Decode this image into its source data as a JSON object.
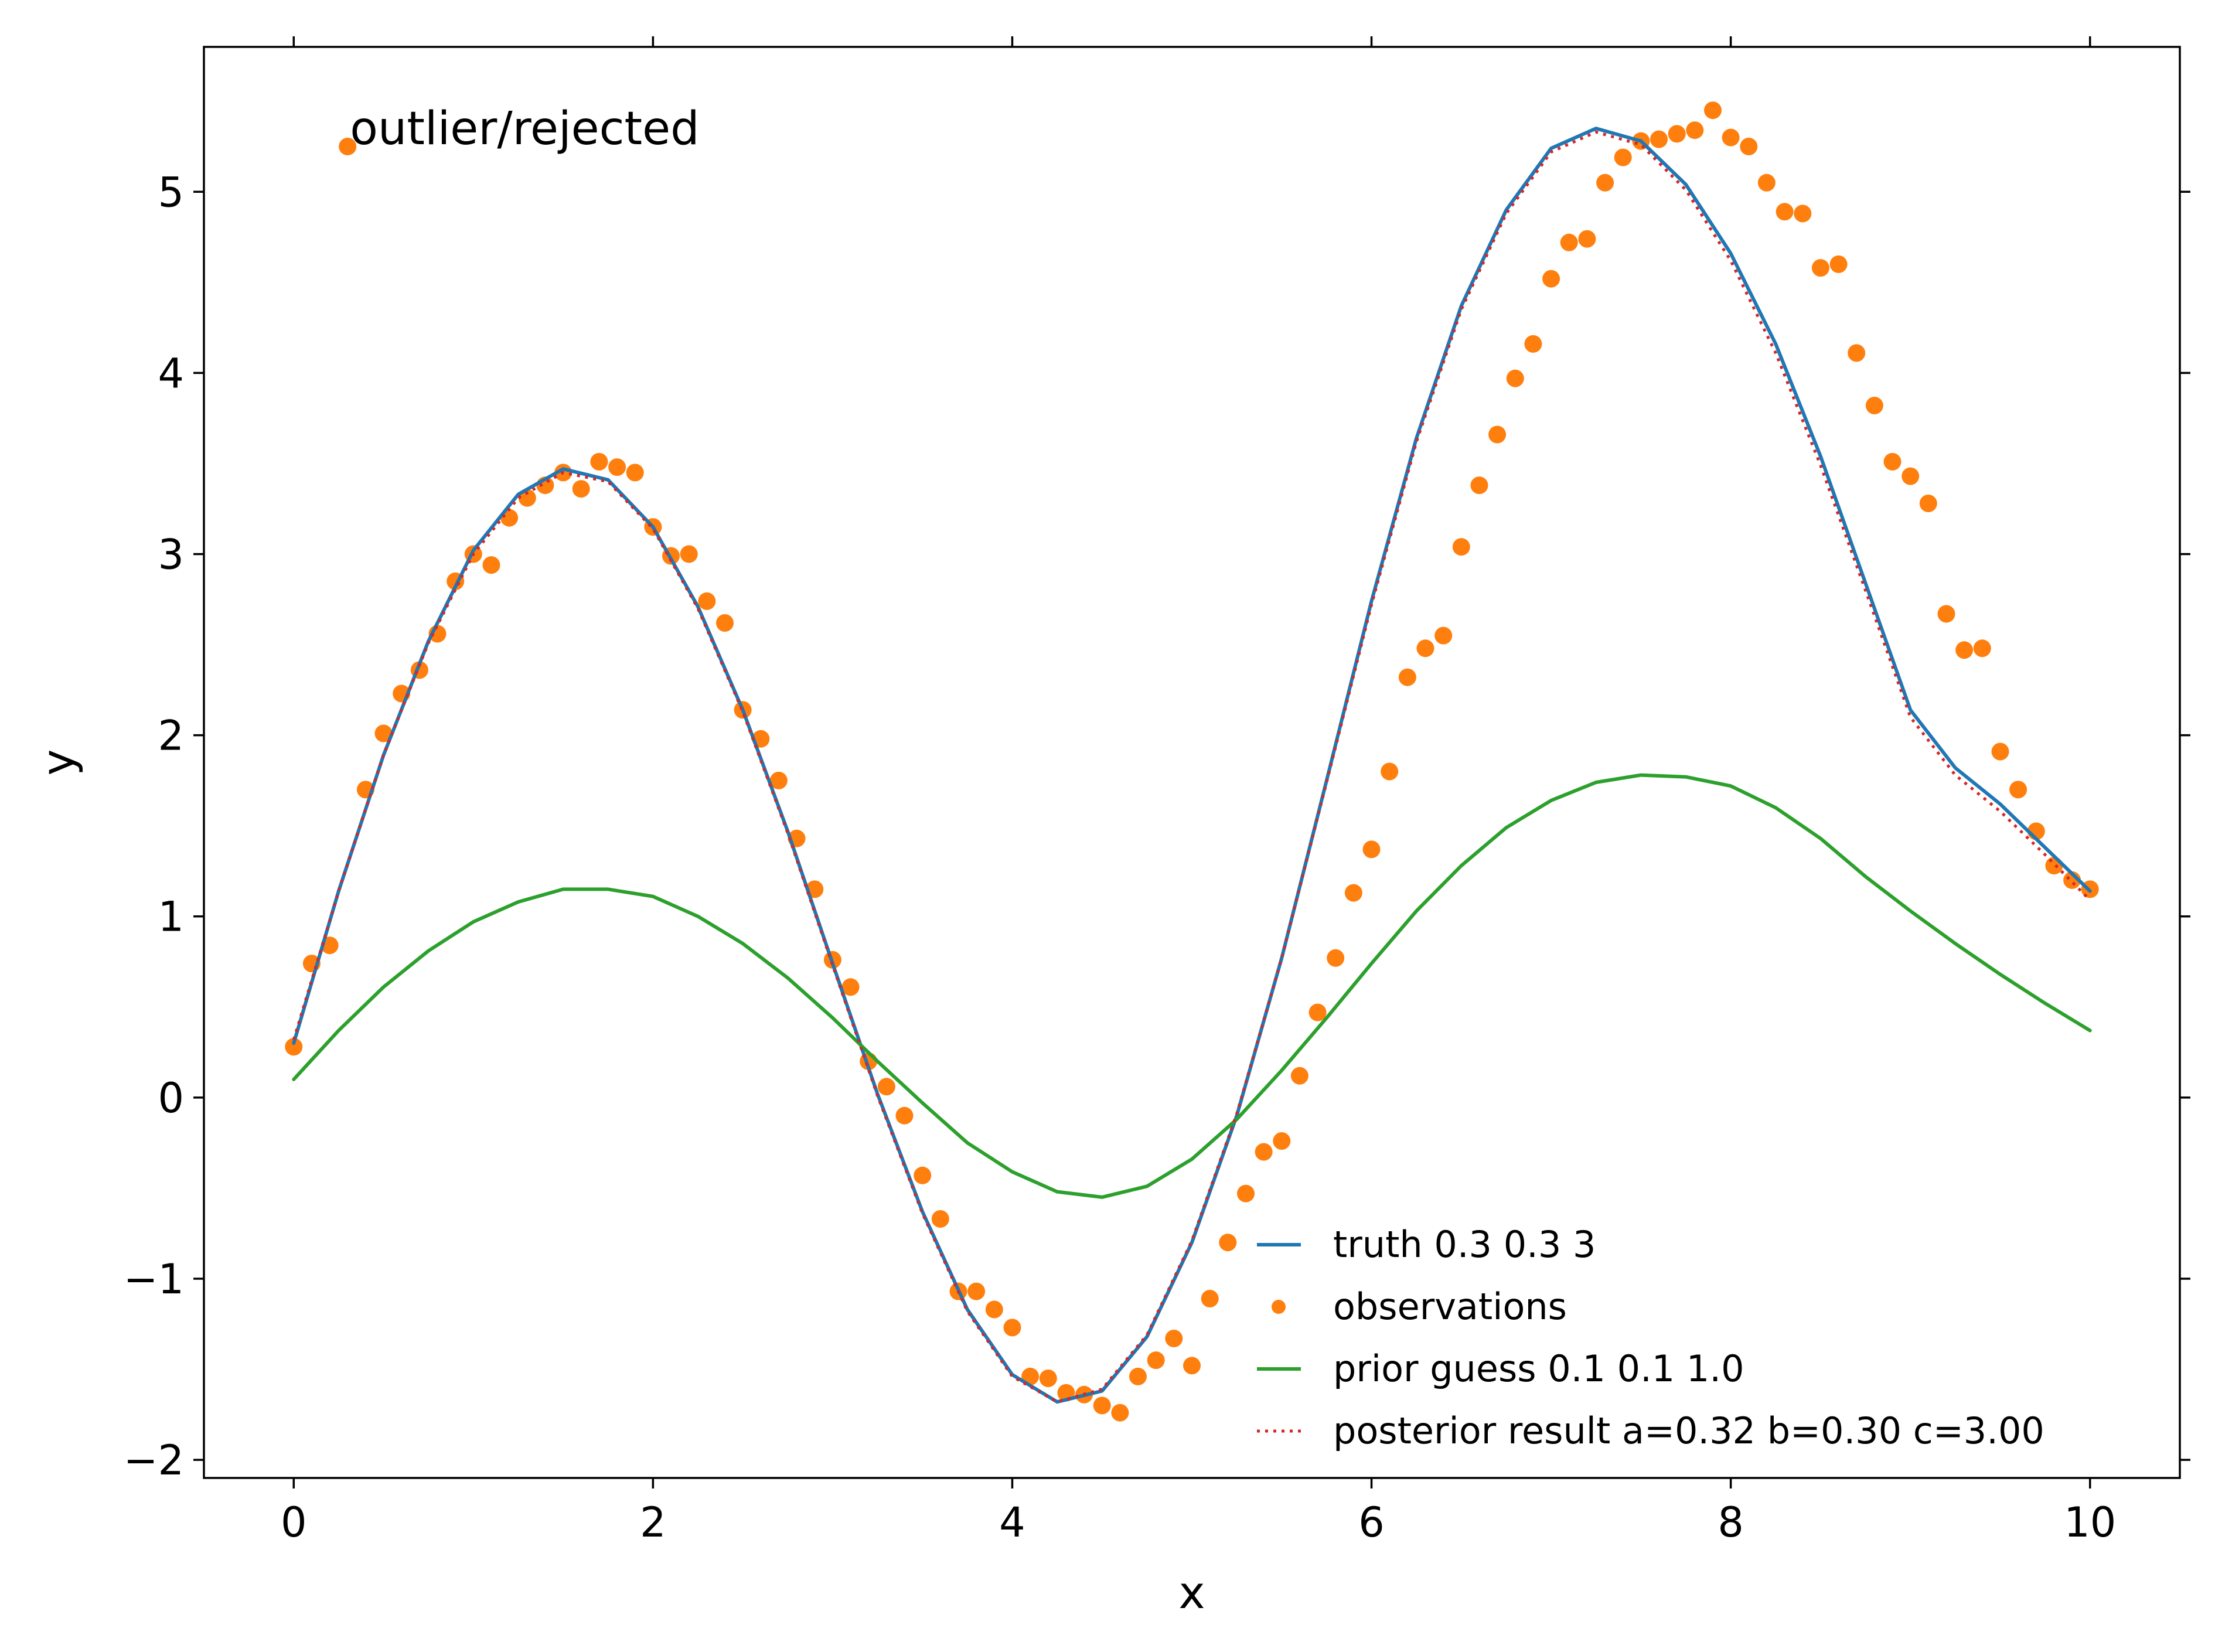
{
  "chart_data": {
    "type": "line",
    "title": "",
    "xlabel": "x",
    "ylabel": "y",
    "xlim": [
      -0.5,
      10.5
    ],
    "ylim": [
      -2.1,
      5.8
    ],
    "xticks": [
      0,
      2,
      4,
      6,
      8,
      10
    ],
    "xtick_labels": [
      "0",
      "2",
      "4",
      "6",
      "8",
      "10"
    ],
    "yticks": [
      -2,
      -1,
      0,
      1,
      2,
      3,
      4,
      5
    ],
    "ytick_labels": [
      "−2",
      "−1",
      "0",
      "1",
      "2",
      "3",
      "4",
      "5"
    ],
    "grid": false,
    "legend_position": "lower-right",
    "annotation": {
      "text": "outlier/rejected",
      "x": 0.3,
      "y": 5.25,
      "color": "#ff7f0e"
    },
    "series": [
      {
        "name": "truth 0.3 0.3 3",
        "kind": "line",
        "color": "#1f77b4",
        "style": "solid",
        "x": [
          0,
          0.25,
          0.5,
          0.75,
          1.0,
          1.25,
          1.5,
          1.75,
          2.0,
          2.25,
          2.5,
          2.75,
          3.0,
          3.25,
          3.5,
          3.75,
          4.0,
          4.25,
          4.5,
          4.75,
          5.0,
          5.25,
          5.5,
          5.75,
          6.0,
          6.25,
          6.5,
          6.75,
          7.0,
          7.25,
          7.5,
          7.75,
          8.0,
          8.25,
          8.5,
          8.75,
          9.0,
          9.25,
          9.5,
          9.75,
          10.0
        ],
        "y": [
          0.3,
          1.14,
          1.89,
          2.52,
          3.02,
          3.33,
          3.47,
          3.41,
          3.15,
          2.71,
          2.14,
          1.47,
          0.74,
          0.02,
          -0.63,
          -1.17,
          -1.53,
          -1.68,
          -1.62,
          -1.32,
          -0.8,
          -0.1,
          0.77,
          1.75,
          2.74,
          3.64,
          4.37,
          4.9,
          5.24,
          5.35,
          5.28,
          5.04,
          4.66,
          4.16,
          3.54,
          2.84,
          2.14,
          1.82,
          1.62,
          1.38,
          1.14
        ]
      },
      {
        "name": "observations",
        "kind": "scatter",
        "color": "#ff7f0e",
        "x": [
          0.0,
          0.1,
          0.2,
          0.4,
          0.5,
          0.6,
          0.7,
          0.8,
          0.9,
          1.0,
          1.1,
          1.2,
          1.3,
          1.4,
          1.5,
          1.6,
          1.7,
          1.8,
          1.9,
          2.0,
          2.1,
          2.2,
          2.3,
          2.4,
          2.5,
          2.6,
          2.7,
          2.8,
          2.9,
          3.0,
          3.1,
          3.2,
          3.3,
          3.4,
          3.5,
          3.6,
          3.7,
          3.8,
          3.9,
          4.0,
          4.1,
          4.2,
          4.3,
          4.4,
          4.5,
          4.6,
          4.7,
          4.8,
          4.9,
          5.0,
          5.1,
          5.2,
          5.3,
          5.4,
          5.5,
          5.6,
          5.7,
          5.8,
          5.9,
          6.0,
          6.1,
          6.2,
          6.3,
          6.4,
          6.5,
          6.6,
          6.7,
          6.8,
          6.9,
          7.0,
          7.1,
          7.2,
          7.3,
          7.4,
          7.5,
          7.6,
          7.7,
          7.8,
          7.9,
          8.0,
          8.1,
          8.2,
          8.3,
          8.4,
          8.5,
          8.6,
          8.7,
          8.8,
          8.9,
          9.0,
          9.1,
          9.2,
          9.3,
          9.4,
          9.5,
          9.6,
          9.7,
          9.8,
          9.9,
          10.0
        ],
        "y": [
          0.28,
          0.74,
          0.84,
          1.7,
          2.01,
          2.23,
          2.36,
          2.56,
          2.85,
          3.0,
          2.94,
          3.2,
          3.31,
          3.38,
          3.45,
          3.36,
          3.51,
          3.48,
          3.45,
          3.15,
          2.99,
          3.0,
          2.74,
          2.62,
          2.14,
          1.98,
          1.75,
          1.43,
          1.15,
          0.76,
          0.61,
          0.2,
          0.06,
          -0.1,
          -0.43,
          -0.67,
          -1.07,
          -1.07,
          -1.17,
          -1.27,
          -1.54,
          -1.55,
          -1.63,
          -1.64,
          -1.7,
          -1.74,
          -1.54,
          -1.45,
          -1.33,
          -1.48,
          -1.11,
          -0.8,
          -0.53,
          -0.3,
          -0.24,
          0.12,
          0.47,
          0.77,
          1.13,
          1.37,
          1.8,
          2.32,
          2.48,
          2.55,
          3.04,
          3.38,
          3.66,
          3.97,
          4.16,
          4.52,
          4.72,
          4.74,
          5.05,
          5.19,
          5.28,
          5.29,
          5.32,
          5.34,
          5.45,
          5.3,
          5.25,
          5.05,
          4.89,
          4.88,
          4.58,
          4.6,
          4.11,
          3.82,
          3.51,
          3.43,
          3.28,
          2.67,
          2.47,
          2.48,
          1.91,
          1.7,
          1.47,
          1.28,
          1.2,
          1.15
        ]
      },
      {
        "name": "prior guess 0.1 0.1 1.0",
        "kind": "line",
        "color": "#2ca02c",
        "style": "solid",
        "x": [
          0,
          0.25,
          0.5,
          0.75,
          1.0,
          1.25,
          1.5,
          1.75,
          2.0,
          2.25,
          2.5,
          2.75,
          3.0,
          3.25,
          3.5,
          3.75,
          4.0,
          4.25,
          4.5,
          4.75,
          5.0,
          5.25,
          5.5,
          5.75,
          6.0,
          6.25,
          6.5,
          6.75,
          7.0,
          7.25,
          7.5,
          7.75,
          8.0,
          8.25,
          8.5,
          8.75,
          9.0,
          9.25,
          9.5,
          9.75,
          10.0
        ],
        "y": [
          0.1,
          0.37,
          0.61,
          0.81,
          0.97,
          1.08,
          1.15,
          1.15,
          1.11,
          1.0,
          0.85,
          0.66,
          0.44,
          0.2,
          -0.03,
          -0.25,
          -0.41,
          -0.52,
          -0.55,
          -0.49,
          -0.34,
          -0.12,
          0.15,
          0.44,
          0.74,
          1.03,
          1.28,
          1.49,
          1.64,
          1.74,
          1.78,
          1.77,
          1.72,
          1.6,
          1.43,
          1.22,
          1.03,
          0.85,
          0.68,
          0.52,
          0.37
        ]
      },
      {
        "name": "posterior result a=0.32 b=0.30 c=3.00",
        "kind": "line",
        "color": "#d62728",
        "style": "dotted",
        "x": [
          0,
          0.25,
          0.5,
          0.75,
          1.0,
          1.25,
          1.5,
          1.75,
          2.0,
          2.25,
          2.5,
          2.75,
          3.0,
          3.25,
          3.5,
          3.75,
          4.0,
          4.25,
          4.5,
          4.75,
          5.0,
          5.25,
          5.5,
          5.75,
          6.0,
          6.25,
          6.5,
          6.75,
          7.0,
          7.25,
          7.5,
          7.75,
          8.0,
          8.25,
          8.5,
          8.75,
          9.0,
          9.25,
          9.5,
          9.75,
          10.0
        ],
        "y": [
          0.32,
          1.14,
          1.89,
          2.51,
          3.0,
          3.31,
          3.45,
          3.4,
          3.14,
          2.7,
          2.13,
          1.46,
          0.73,
          0.01,
          -0.64,
          -1.18,
          -1.54,
          -1.68,
          -1.61,
          -1.31,
          -0.79,
          -0.09,
          0.77,
          1.74,
          2.72,
          3.62,
          4.35,
          4.88,
          5.22,
          5.33,
          5.26,
          5.01,
          4.62,
          4.11,
          3.49,
          2.8,
          2.1,
          1.78,
          1.58,
          1.34,
          1.09
        ]
      }
    ]
  }
}
